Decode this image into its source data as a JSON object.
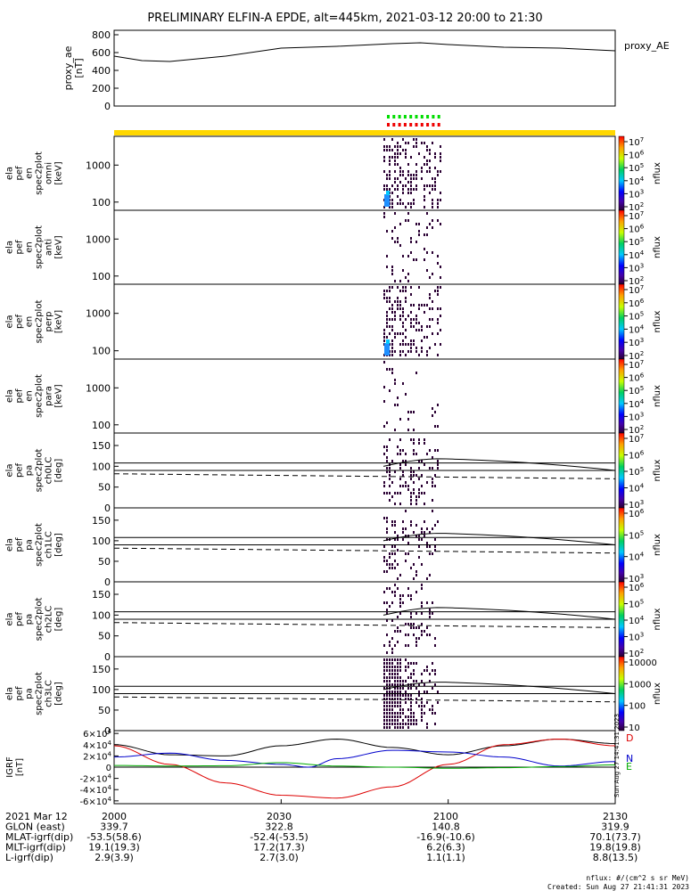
{
  "title": "PRELIMINARY ELFIN-A EPDE, alt=445km, 2021-03-12 20:00 to 21:30",
  "footer": {
    "units": "nflux: #/(cm^2 s sr MeV)",
    "created": "Created: Sun Aug 27 21:41:31 2023",
    "side_stamp": "Sun Aug 27 14:41:31 2023"
  },
  "colors": {
    "yellow_bar": "#ffd700",
    "green_marks": "#00dd00",
    "red_marks": "#ee0000",
    "spectrogram_dark": "#2a0033",
    "spectrogram_blue": "#1f8fff"
  },
  "chart_data": [
    {
      "type": "line",
      "panel": "proxy_ae",
      "ylabel": "proxy_ae\n[nT]",
      "legend": "proxy_AE",
      "yticks": [
        "800",
        "600",
        "400",
        "200",
        "0"
      ],
      "ylim": [
        0,
        850
      ],
      "xlim": [
        0,
        90
      ],
      "x": [
        0,
        5,
        10,
        20,
        30,
        40,
        50,
        55,
        60,
        70,
        80,
        90
      ],
      "y": [
        560,
        510,
        500,
        560,
        650,
        670,
        700,
        710,
        690,
        660,
        650,
        620
      ]
    },
    {
      "type": "heatmap",
      "panel": "omni",
      "ylabel": "ela\npef\nen\nspec2plot\nomni\n[keV]",
      "yscale": "log",
      "yticks": [
        "1000",
        "100"
      ],
      "colorbar_label": "nflux",
      "colorbar_ticks": [
        "10^7",
        "10^6",
        "10^5",
        "10^4",
        "10^3",
        "10^2"
      ]
    },
    {
      "type": "heatmap",
      "panel": "anti",
      "ylabel": "ela\npef\nen\nspec2plot\nanti\n[keV]",
      "yscale": "log",
      "yticks": [
        "1000",
        "100"
      ],
      "colorbar_label": "nflux",
      "colorbar_ticks": [
        "10^7",
        "10^6",
        "10^5",
        "10^4",
        "10^3",
        "10^2"
      ]
    },
    {
      "type": "heatmap",
      "panel": "perp",
      "ylabel": "ela\npef\nen\nspec2plot\nperp\n[keV]",
      "yscale": "log",
      "yticks": [
        "1000",
        "100"
      ],
      "colorbar_label": "nflux",
      "colorbar_ticks": [
        "10^7",
        "10^6",
        "10^5",
        "10^4",
        "10^3",
        "10^2"
      ]
    },
    {
      "type": "heatmap",
      "panel": "para",
      "ylabel": "ela\npef\nen\nspec2plot\npara\n[keV]",
      "yscale": "log",
      "yticks": [
        "1000",
        "100"
      ],
      "colorbar_label": "nflux",
      "colorbar_ticks": [
        "10^7",
        "10^6",
        "10^5",
        "10^4",
        "10^3",
        "10^2"
      ]
    },
    {
      "type": "heatmap",
      "panel": "ch0LC",
      "ylabel": "ela\npef\npa\nspec2plot\nch0LC\n[deg]",
      "yticks": [
        "150",
        "100",
        "50",
        "0"
      ],
      "ylim": [
        0,
        180
      ],
      "colorbar_label": "nflux",
      "colorbar_ticks": [
        "10^7",
        "10^6",
        "10^5",
        "10^4",
        "10^3"
      ]
    },
    {
      "type": "heatmap",
      "panel": "ch1LC",
      "ylabel": "ela\npef\npa\nspec2plot\nch1LC\n[deg]",
      "yticks": [
        "150",
        "100",
        "50",
        "0"
      ],
      "ylim": [
        0,
        180
      ],
      "colorbar_label": "nflux",
      "colorbar_ticks": [
        "10^6",
        "10^5",
        "10^4",
        "10^3"
      ]
    },
    {
      "type": "heatmap",
      "panel": "ch2LC",
      "ylabel": "ela\npef\npa\nspec2plot\nch2LC\n[deg]",
      "yticks": [
        "150",
        "100",
        "50",
        "0"
      ],
      "ylim": [
        0,
        180
      ],
      "colorbar_label": "nflux",
      "colorbar_ticks": [
        "10^6",
        "10^5",
        "10^4",
        "10^3",
        "10^2"
      ]
    },
    {
      "type": "heatmap",
      "panel": "ch3LC",
      "ylabel": "ela\npef\npa\nspec2plot\nch3LC\n[deg]",
      "yticks": [
        "150",
        "100",
        "50",
        "0"
      ],
      "ylim": [
        0,
        180
      ],
      "colorbar_label": "nflux",
      "colorbar_ticks": [
        "10000",
        "1000",
        "100",
        "10"
      ]
    },
    {
      "type": "line",
      "panel": "IGRF",
      "ylabel": "IGRF\n[nT]",
      "yticks": [
        "6×10^4",
        "4×10^4",
        "2×10^4",
        "0",
        "-2×10^4",
        "-4×10^4",
        "-6×10^4"
      ],
      "ylim": [
        -65000,
        65000
      ],
      "xlim": [
        0,
        90
      ],
      "legend": [
        "D",
        "N",
        "E"
      ],
      "series": [
        {
          "name": "",
          "color": "#000000",
          "x": [
            0,
            10,
            20,
            30,
            40,
            50,
            60,
            70,
            80,
            90
          ],
          "y": [
            40000,
            22000,
            20000,
            38000,
            50000,
            35000,
            22000,
            38000,
            50000,
            42000
          ]
        },
        {
          "name": "D",
          "color": "#dd0000",
          "x": [
            0,
            10,
            20,
            30,
            40,
            50,
            60,
            70,
            80,
            90
          ],
          "y": [
            38000,
            5000,
            -28000,
            -50000,
            -55000,
            -35000,
            5000,
            40000,
            50000,
            38000
          ]
        },
        {
          "name": "N",
          "color": "#0000cc",
          "x": [
            0,
            10,
            20,
            30,
            35,
            40,
            50,
            60,
            70,
            80,
            90
          ],
          "y": [
            18000,
            25000,
            12000,
            5000,
            0,
            15000,
            30000,
            27000,
            18000,
            2000,
            10000
          ]
        },
        {
          "name": "E",
          "color": "#00aa00",
          "x": [
            0,
            10,
            20,
            30,
            40,
            50,
            60,
            70,
            80,
            90
          ],
          "y": [
            3000,
            2000,
            2500,
            8000,
            2000,
            0,
            -2000,
            -1000,
            1000,
            4000
          ]
        }
      ]
    }
  ],
  "x_axis": {
    "ticks": [
      "2000",
      "2030",
      "2100",
      "2130"
    ],
    "rows": [
      {
        "label": "2021 Mar 12",
        "values": [
          "2000",
          "2030",
          "2100",
          "2130"
        ]
      },
      {
        "label": "GLON (east)",
        "values": [
          "339.7",
          "322.8",
          "140.8",
          "319.9"
        ]
      },
      {
        "label": "MLAT-igrf(dip)",
        "values": [
          "-53.5(58.6)",
          "-52.4(-53.5)",
          "-16.9(-10.6)",
          "70.1(73.7)"
        ]
      },
      {
        "label": "MLT-igrf(dip)",
        "values": [
          "19.1(19.3)",
          "17.2(17.3)",
          "6.2(6.3)",
          "19.8(19.8)"
        ]
      },
      {
        "label": "L-igrf(dip)",
        "values": [
          "2.9(3.9)",
          "2.7(3.0)",
          "1.1(1.1)",
          "8.8(13.5)"
        ]
      }
    ]
  }
}
